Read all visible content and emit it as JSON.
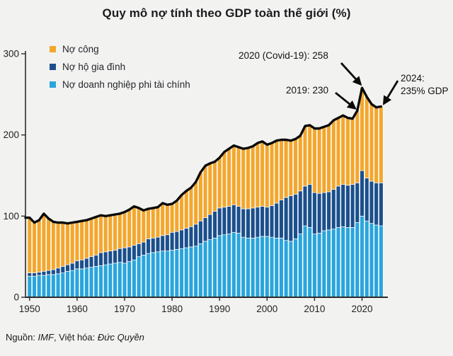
{
  "title": "Quy mô nợ tính theo GDP toàn thế giới (%)",
  "legend": [
    {
      "key": "public",
      "label": "Nợ công",
      "color": "#f3a72e"
    },
    {
      "key": "household",
      "label": "Nợ hộ gia đình",
      "color": "#1b4f8c"
    },
    {
      "key": "corporate",
      "label": "Nợ doanh nghiệp phi tài chính",
      "color": "#2aa5dc"
    }
  ],
  "annotations": {
    "covid": {
      "text": "2020 (Covid-19): 258",
      "year": 2020,
      "value": 258
    },
    "y2019": {
      "text": "2019: 230",
      "year": 2019,
      "value": 230
    },
    "y2024": {
      "line1": "2024:",
      "line2": "235% GDP",
      "year": 2024,
      "value": 235
    }
  },
  "source": {
    "prefix": "Nguồn: ",
    "name": "IMF",
    "middle": ", Việt hóa: ",
    "author": "Đức Quyền"
  },
  "chart_data": {
    "type": "bar",
    "stacked": true,
    "title": "Quy mô nợ tính theo GDP toàn thế giới (%)",
    "xlabel": "",
    "ylabel": "",
    "ylim": [
      0,
      300
    ],
    "yticks": [
      0,
      100,
      200,
      300
    ],
    "xticks": [
      1950,
      1960,
      1970,
      1980,
      1990,
      2000,
      2010,
      2020
    ],
    "grid": false,
    "legend_position": "top-left",
    "background": "#f2f2f1",
    "total_line_color": "#0a0a0a",
    "years": [
      1950,
      1951,
      1952,
      1953,
      1954,
      1955,
      1956,
      1957,
      1958,
      1959,
      1960,
      1961,
      1962,
      1963,
      1964,
      1965,
      1966,
      1967,
      1968,
      1969,
      1970,
      1971,
      1972,
      1973,
      1974,
      1975,
      1976,
      1977,
      1978,
      1979,
      1980,
      1981,
      1982,
      1983,
      1984,
      1985,
      1986,
      1987,
      1988,
      1989,
      1990,
      1991,
      1992,
      1993,
      1994,
      1995,
      1996,
      1997,
      1998,
      1999,
      2000,
      2001,
      2002,
      2003,
      2004,
      2005,
      2006,
      2007,
      2008,
      2009,
      2010,
      2011,
      2012,
      2013,
      2014,
      2015,
      2016,
      2017,
      2018,
      2019,
      2020,
      2021,
      2022,
      2023,
      2024
    ],
    "series": [
      {
        "name": "Nợ doanh nghiệp phi tài chính",
        "color": "#2aa5dc",
        "values": [
          26,
          26,
          27,
          27,
          28,
          28,
          29,
          30,
          32,
          33,
          35,
          35,
          36,
          37,
          38,
          39,
          40,
          41,
          42,
          43,
          42,
          44,
          46,
          50,
          52,
          54,
          55,
          56,
          57,
          57,
          58,
          59,
          60,
          61,
          62,
          63,
          66,
          69,
          71,
          73,
          76,
          77,
          78,
          80,
          79,
          74,
          73,
          73,
          74,
          75,
          75,
          74,
          73,
          73,
          70,
          69,
          72,
          78,
          88,
          86,
          78,
          79,
          82,
          83,
          84,
          86,
          87,
          86,
          86,
          92,
          100,
          94,
          91,
          89,
          88
        ]
      },
      {
        "name": "Nợ hộ gia đình",
        "color": "#1b4f8c",
        "values": [
          4,
          4,
          4,
          5,
          5,
          6,
          7,
          8,
          8,
          9,
          10,
          11,
          12,
          13,
          14,
          16,
          16,
          16,
          16,
          17,
          19,
          18,
          18,
          16,
          16,
          18,
          18,
          18,
          19,
          20,
          22,
          22,
          23,
          24,
          25,
          27,
          28,
          29,
          31,
          33,
          34,
          34,
          34,
          34,
          33,
          35,
          36,
          37,
          37,
          37,
          36,
          39,
          43,
          47,
          53,
          56,
          55,
          53,
          49,
          53,
          51,
          49,
          47,
          47,
          49,
          51,
          52,
          52,
          53,
          49,
          56,
          53,
          52,
          52,
          53
        ]
      },
      {
        "name": "Nợ công",
        "color": "#f3a72e",
        "values": [
          68,
          62,
          64,
          71,
          64,
          59,
          56,
          54,
          51,
          50,
          48,
          48,
          47,
          47,
          47,
          46,
          44,
          44,
          44,
          43,
          44,
          46,
          48,
          44,
          39,
          37,
          37,
          37,
          40,
          37,
          35,
          38,
          43,
          46,
          48,
          52,
          60,
          64,
          63,
          61,
          62,
          68,
          71,
          73,
          73,
          74,
          75,
          76,
          79,
          80,
          77,
          77,
          77,
          74,
          71,
          68,
          68,
          68,
          74,
          73,
          79,
          80,
          81,
          82,
          85,
          84,
          85,
          83,
          81,
          89,
          102,
          100,
          95,
          93,
          94
        ]
      }
    ],
    "totals": [
      98,
      92,
      95,
      103,
      97,
      93,
      92,
      92,
      91,
      92,
      93,
      94,
      95,
      97,
      99,
      101,
      100,
      101,
      102,
      103,
      105,
      108,
      112,
      110,
      107,
      109,
      110,
      111,
      116,
      114,
      115,
      119,
      126,
      131,
      135,
      142,
      154,
      162,
      165,
      167,
      172,
      179,
      183,
      187,
      185,
      183,
      184,
      186,
      190,
      192,
      188,
      190,
      193,
      194,
      194,
      193,
      195,
      199,
      211,
      212,
      208,
      208,
      210,
      212,
      218,
      221,
      224,
      221,
      220,
      230,
      258,
      247,
      238,
      234,
      235
    ]
  }
}
